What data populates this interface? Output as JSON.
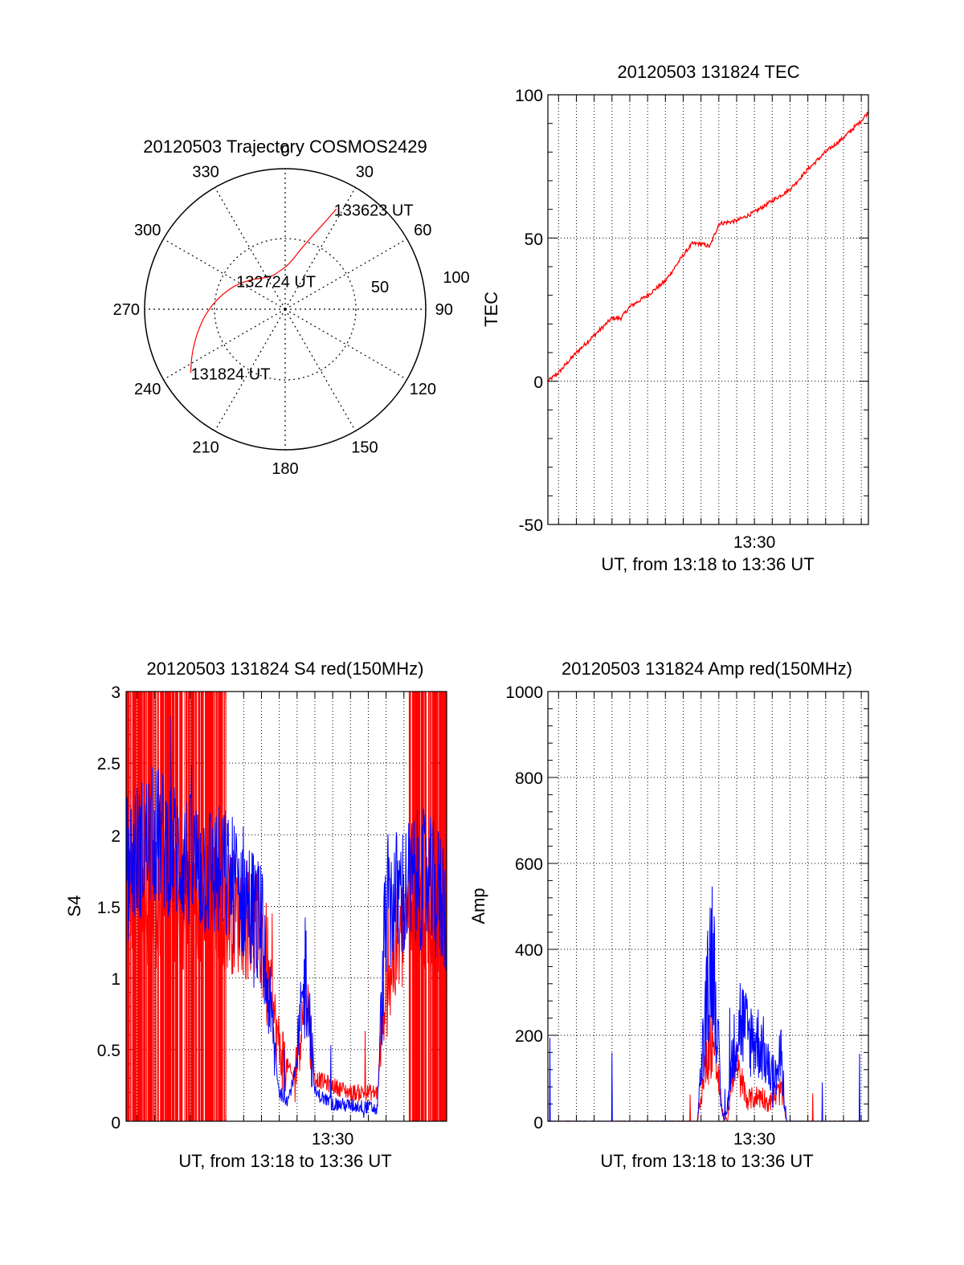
{
  "colors": {
    "red": "#ff0000",
    "blue": "#0000ff",
    "axis": "#000000",
    "grid": "#000000"
  },
  "chart_data": [
    {
      "id": "trajectory",
      "type": "polar",
      "title": "20120503 Trajectory COSMOS2429",
      "angle_labels": [
        "0",
        "30",
        "60",
        "90",
        "120",
        "150",
        "180",
        "210",
        "240",
        "270",
        "300",
        "330"
      ],
      "radial_labels": [
        "50",
        "100"
      ],
      "rlim": [
        0,
        100
      ],
      "grid": true,
      "series": [
        {
          "color": "#ff0000",
          "points": [
            [
              236,
              81
            ],
            [
              244,
              74
            ],
            [
              255,
              65
            ],
            [
              270,
              55
            ],
            [
              290,
              43
            ],
            [
              310,
              33
            ],
            [
              335,
              25
            ],
            [
              350,
              27
            ],
            [
              5,
              32
            ],
            [
              15,
              45
            ],
            [
              22,
              60
            ],
            [
              25,
              70
            ],
            [
              27,
              80
            ]
          ]
        }
      ],
      "annotations": [
        {
          "text": "133623 UT",
          "az": 27,
          "r": 80
        },
        {
          "text": "132724 UT",
          "az": 330,
          "r": 13
        },
        {
          "text": "131824 UT",
          "az": 236,
          "r": 81
        }
      ]
    },
    {
      "id": "tec",
      "type": "line",
      "title": "20120503 131824 TEC",
      "ylabel": "TEC",
      "xlabel": "UT, from 13:18 to 13:36 UT",
      "xlim": [
        798.4,
        816.4
      ],
      "ylim": [
        -50,
        100
      ],
      "yticks": [
        "-50",
        "0",
        "50",
        "100"
      ],
      "xtick": {
        "label": "13:30",
        "value": 810
      },
      "grid": true,
      "series": [
        {
          "color": "#ff0000",
          "x": [
            798.4,
            799.0,
            800.0,
            801.0,
            802.0,
            802.5,
            803.0,
            804.0,
            805.0,
            806.0,
            806.5,
            807.0,
            807.5,
            808.0,
            809.0,
            810.0,
            811.0,
            812.0,
            813.0,
            814.0,
            815.0,
            816.0,
            816.4
          ],
          "y": [
            0,
            3,
            10,
            16,
            22,
            22,
            26,
            30,
            35,
            44,
            48,
            48,
            47,
            55,
            56,
            59,
            63,
            67,
            74,
            80,
            85,
            91,
            94
          ]
        }
      ]
    },
    {
      "id": "s4",
      "type": "line",
      "title": "20120503 131824 S4 red(150MHz)",
      "ylabel": "S4",
      "xlabel": "UT, from 13:18 to 13:36 UT",
      "xlim": [
        798.4,
        816.4
      ],
      "ylim": [
        0,
        3
      ],
      "yticks": [
        "0",
        "0.5",
        "1",
        "1.5",
        "2",
        "2.5",
        "3"
      ],
      "xtick": {
        "label": "13:30",
        "value": 810
      },
      "grid": true,
      "series": [
        {
          "color": "#ff0000",
          "x": [
            798.4,
            801.0,
            803.5,
            805.0,
            806.0,
            807.0,
            807.8,
            808.5,
            809.0,
            811.0,
            812.5,
            813.0,
            814.5,
            816.4
          ],
          "y": [
            1.5,
            1.5,
            1.5,
            1.45,
            1.3,
            0.5,
            0.3,
            0.9,
            0.3,
            0.2,
            0.2,
            1.0,
            1.5,
            1.3
          ]
        },
        {
          "color": "#0000ff",
          "x": [
            798.4,
            800.0,
            802.0,
            804.0,
            805.0,
            806.0,
            807.0,
            807.5,
            808.0,
            808.5,
            809.0,
            810.0,
            812.0,
            812.5,
            813.0,
            814.0,
            815.0,
            816.4
          ],
          "y": [
            1.8,
            2.0,
            1.8,
            1.7,
            1.6,
            1.3,
            0.2,
            0.15,
            0.4,
            1.1,
            0.2,
            0.12,
            0.1,
            0.08,
            1.5,
            1.6,
            1.7,
            1.5
          ]
        }
      ]
    },
    {
      "id": "amp",
      "type": "line",
      "title": "20120503 131824 Amp red(150MHz)",
      "ylabel": "Amp",
      "xlabel": "UT, from 13:18 to 13:36 UT",
      "xlim": [
        798.4,
        816.4
      ],
      "ylim": [
        0,
        1000
      ],
      "yticks": [
        "0",
        "200",
        "400",
        "600",
        "800",
        "1000"
      ],
      "xtick": {
        "label": "13:30",
        "value": 810
      },
      "grid": true,
      "series": [
        {
          "color": "#ff0000",
          "x": [
            798.4,
            806.8,
            807.0,
            807.3,
            807.6,
            807.9,
            808.2,
            808.5,
            808.8,
            809.2,
            809.6,
            810.0,
            810.4,
            810.8,
            811.2,
            811.5,
            811.8,
            816.4
          ],
          "y": [
            0,
            0,
            60,
            130,
            200,
            120,
            20,
            0,
            140,
            100,
            50,
            55,
            60,
            40,
            60,
            75,
            0,
            0
          ]
        },
        {
          "color": "#0000ff",
          "x": [
            798.4,
            806.8,
            807.0,
            807.3,
            807.6,
            807.9,
            808.1,
            808.3,
            808.5,
            808.8,
            809.2,
            809.6,
            810.0,
            810.4,
            810.8,
            811.2,
            811.5,
            811.8,
            816.4
          ],
          "y": [
            0,
            0,
            120,
            260,
            420,
            250,
            40,
            0,
            40,
            160,
            240,
            200,
            190,
            180,
            120,
            100,
            150,
            0,
            0
          ]
        }
      ]
    }
  ]
}
